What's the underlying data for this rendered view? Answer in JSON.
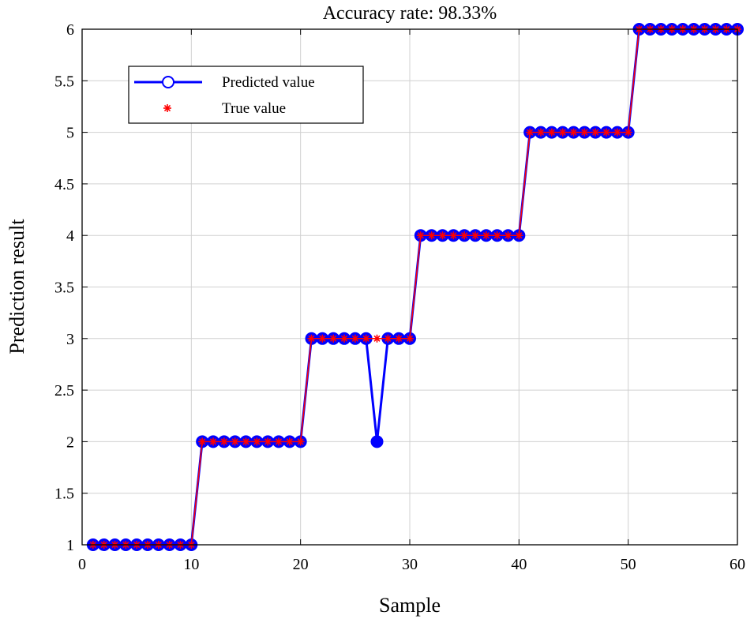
{
  "chart_data": {
    "type": "line",
    "title": "Accuracy rate: 98.33%",
    "xlabel": "Sample",
    "ylabel": "Prediction result",
    "xlim": [
      0,
      60
    ],
    "ylim": [
      1,
      6
    ],
    "xticks": [
      0,
      10,
      20,
      30,
      40,
      50,
      60
    ],
    "yticks": [
      1,
      1.5,
      2,
      2.5,
      3,
      3.5,
      4,
      4.5,
      5,
      5.5,
      6
    ],
    "xtick_labels": [
      "0",
      "10",
      "20",
      "30",
      "40",
      "50",
      "60"
    ],
    "ytick_labels": [
      "1",
      "1.5",
      "2",
      "2.5",
      "3",
      "3.5",
      "4",
      "4.5",
      "5",
      "5.5",
      "6"
    ],
    "grid": true,
    "legend_position": "top-left",
    "x": [
      1,
      2,
      3,
      4,
      5,
      6,
      7,
      8,
      9,
      10,
      11,
      12,
      13,
      14,
      15,
      16,
      17,
      18,
      19,
      20,
      21,
      22,
      23,
      24,
      25,
      26,
      27,
      28,
      29,
      30,
      31,
      32,
      33,
      34,
      35,
      36,
      37,
      38,
      39,
      40,
      41,
      42,
      43,
      44,
      45,
      46,
      47,
      48,
      49,
      50,
      51,
      52,
      53,
      54,
      55,
      56,
      57,
      58,
      59,
      60
    ],
    "series": [
      {
        "name": "Predicted value",
        "color": "#0000ff",
        "marker": "circle",
        "values": [
          1,
          1,
          1,
          1,
          1,
          1,
          1,
          1,
          1,
          1,
          2,
          2,
          2,
          2,
          2,
          2,
          2,
          2,
          2,
          2,
          3,
          3,
          3,
          3,
          3,
          3,
          2,
          3,
          3,
          3,
          4,
          4,
          4,
          4,
          4,
          4,
          4,
          4,
          4,
          4,
          5,
          5,
          5,
          5,
          5,
          5,
          5,
          5,
          5,
          5,
          6,
          6,
          6,
          6,
          6,
          6,
          6,
          6,
          6,
          6
        ]
      },
      {
        "name": "True value",
        "color": "#ff0000",
        "marker": "star",
        "values": [
          1,
          1,
          1,
          1,
          1,
          1,
          1,
          1,
          1,
          1,
          2,
          2,
          2,
          2,
          2,
          2,
          2,
          2,
          2,
          2,
          3,
          3,
          3,
          3,
          3,
          3,
          3,
          3,
          3,
          3,
          4,
          4,
          4,
          4,
          4,
          4,
          4,
          4,
          4,
          4,
          5,
          5,
          5,
          5,
          5,
          5,
          5,
          5,
          5,
          5,
          6,
          6,
          6,
          6,
          6,
          6,
          6,
          6,
          6,
          6
        ]
      }
    ]
  }
}
